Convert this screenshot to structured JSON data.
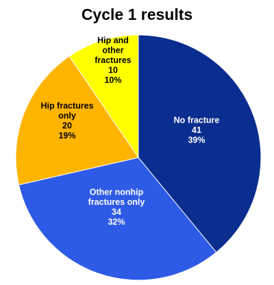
{
  "chart_data": {
    "type": "pie",
    "title": "Cycle 1 results",
    "slices": [
      {
        "name": "No fracture",
        "label_lines": [
          "No fracture",
          "41",
          "39%"
        ],
        "value": 41,
        "percent": 39,
        "color": "#0a2e8f",
        "text_color": "#ffffff"
      },
      {
        "name": "Other nonhip fractures only",
        "label_lines": [
          "Other nonhip",
          "fractures  only",
          "34",
          "32%"
        ],
        "value": 34,
        "percent": 32,
        "color": "#2e5be6",
        "text_color": "#ffffff"
      },
      {
        "name": "Hip fractures only",
        "label_lines": [
          "Hip fractures",
          "only",
          "20",
          "19%"
        ],
        "value": 20,
        "percent": 19,
        "color": "#ffb400",
        "text_color": "#000000"
      },
      {
        "name": "Hip and other fractures",
        "label_lines": [
          "Hip and",
          "other",
          "fractures",
          "10",
          "10%"
        ],
        "value": 10,
        "percent": 10,
        "color": "#ffff00",
        "text_color": "#000000"
      }
    ],
    "start_angle_deg": 0,
    "direction": "clockwise"
  }
}
